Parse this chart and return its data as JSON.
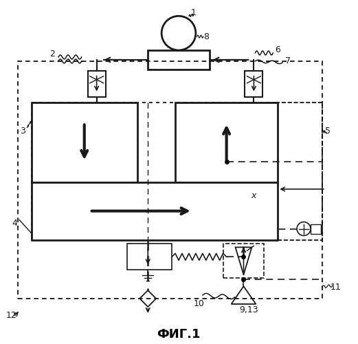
{
  "title": "ФИГ.1",
  "bg_color": "#ffffff",
  "lc": "#1a1a1a",
  "fig_width": 5.21,
  "fig_height": 5.0,
  "dpi": 100
}
